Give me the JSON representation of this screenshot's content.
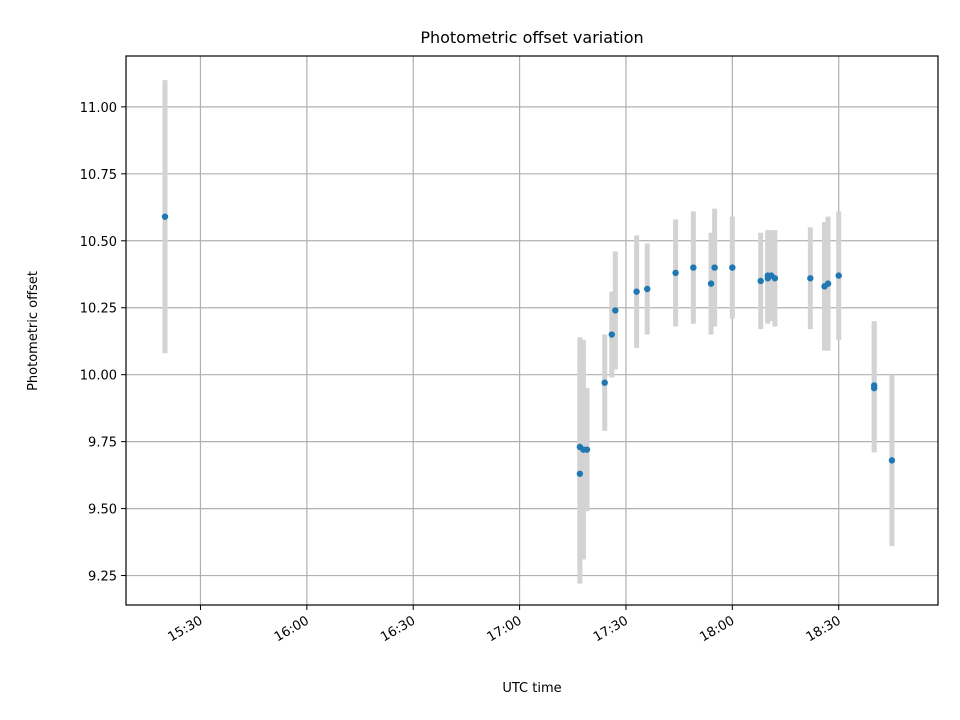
{
  "chart_data": {
    "type": "scatter",
    "title": "Photometric offset variation",
    "xlabel": "UTC time",
    "ylabel": "Photometric offset",
    "x_ticks": [
      "15:30",
      "16:00",
      "16:30",
      "17:00",
      "17:30",
      "18:00",
      "18:30"
    ],
    "y_ticks": [
      "9.25",
      "9.50",
      "9.75",
      "10.00",
      "10.25",
      "10.50",
      "10.75",
      "11.00"
    ],
    "xlim": [
      "15:09",
      "18:58"
    ],
    "ylim": [
      9.14,
      11.19
    ],
    "grid": true,
    "marker_color": "#1f77b4",
    "errorbar_color": "#d3d3d3",
    "series": [
      {
        "points": [
          {
            "x": "15:20",
            "y": 10.59,
            "err": 0.51
          },
          {
            "x": "17:17",
            "y": 9.63,
            "err": 0.41
          },
          {
            "x": "17:17",
            "y": 9.73,
            "err": 0.41
          },
          {
            "x": "17:18",
            "y": 9.72,
            "err": 0.41
          },
          {
            "x": "17:19",
            "y": 9.72,
            "err": 0.23
          },
          {
            "x": "17:24",
            "y": 9.97,
            "err": 0.18
          },
          {
            "x": "17:26",
            "y": 10.15,
            "err": 0.16
          },
          {
            "x": "17:27",
            "y": 10.24,
            "err": 0.22
          },
          {
            "x": "17:33",
            "y": 10.31,
            "err": 0.21
          },
          {
            "x": "17:36",
            "y": 10.32,
            "err": 0.17
          },
          {
            "x": "17:44",
            "y": 10.38,
            "err": 0.2
          },
          {
            "x": "17:49",
            "y": 10.4,
            "err": 0.21
          },
          {
            "x": "17:54",
            "y": 10.34,
            "err": 0.19
          },
          {
            "x": "17:55",
            "y": 10.4,
            "err": 0.22
          },
          {
            "x": "18:00",
            "y": 10.4,
            "err": 0.19
          },
          {
            "x": "18:08",
            "y": 10.35,
            "err": 0.18
          },
          {
            "x": "18:10",
            "y": 10.37,
            "err": 0.17
          },
          {
            "x": "18:10",
            "y": 10.36,
            "err": 0.17
          },
          {
            "x": "18:11",
            "y": 10.37,
            "err": 0.17
          },
          {
            "x": "18:12",
            "y": 10.36,
            "err": 0.18
          },
          {
            "x": "18:22",
            "y": 10.36,
            "err": 0.19
          },
          {
            "x": "18:26",
            "y": 10.33,
            "err": 0.24
          },
          {
            "x": "18:27",
            "y": 10.34,
            "err": 0.25
          },
          {
            "x": "18:30",
            "y": 10.37,
            "err": 0.24
          },
          {
            "x": "18:40",
            "y": 9.96,
            "err": 0.24
          },
          {
            "x": "18:40",
            "y": 9.95,
            "err": 0.24
          },
          {
            "x": "18:45",
            "y": 9.68,
            "err": 0.32
          }
        ]
      }
    ]
  }
}
